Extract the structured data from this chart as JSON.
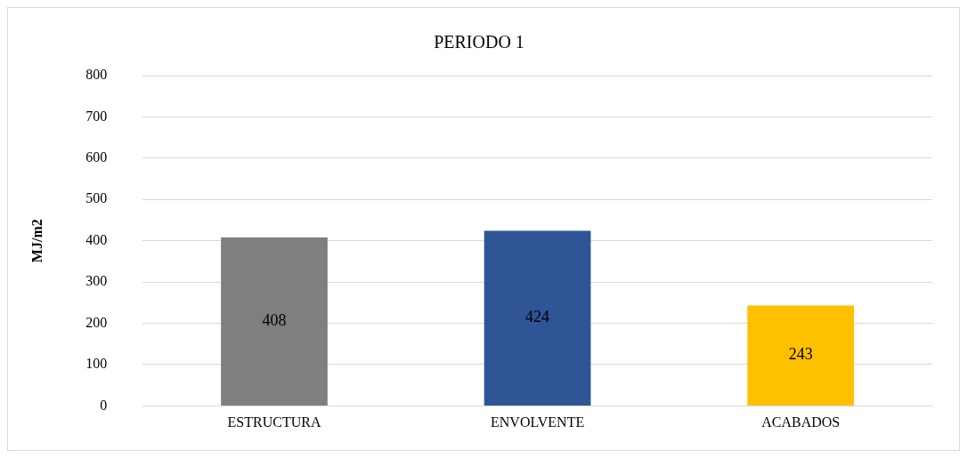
{
  "chart_data": {
    "type": "bar",
    "title": "PERIODO 1",
    "ylabel": "MJ/m2",
    "categories": [
      "ESTRUCTURA",
      "ENVOLVENTE",
      "ACABADOS"
    ],
    "values": [
      408,
      424,
      243
    ],
    "colors": [
      "#7f7f7f",
      "#2f5597",
      "#ffc000"
    ],
    "ylim": [
      0,
      800
    ],
    "yticks": [
      0,
      100,
      200,
      300,
      400,
      500,
      600,
      700,
      800
    ],
    "grid": "y",
    "data_labels": true,
    "legend": false
  }
}
